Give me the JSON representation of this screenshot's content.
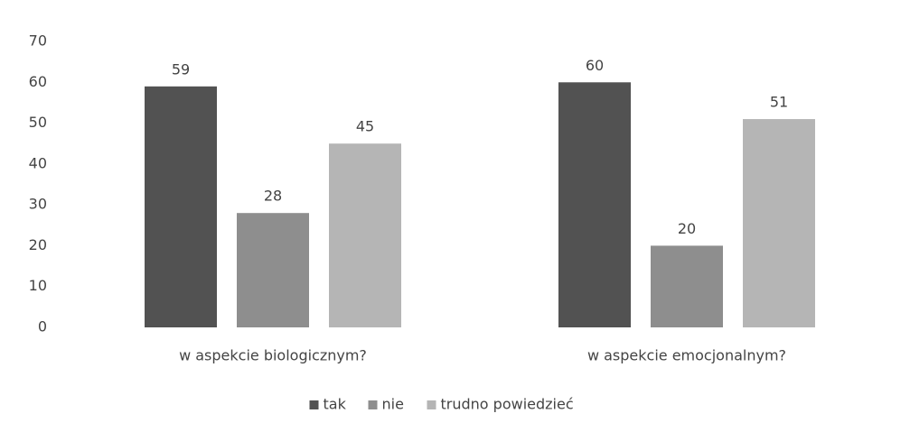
{
  "chart_data": {
    "type": "bar",
    "categories": [
      "w aspekcie biologicznym?",
      "w aspekcie emocjonalnym?"
    ],
    "series": [
      {
        "name": "tak",
        "color": "#525252",
        "values": [
          59,
          60
        ]
      },
      {
        "name": "nie",
        "color": "#8e8e8e",
        "values": [
          28,
          20
        ]
      },
      {
        "name": "trudno powiedzieć",
        "color": "#b5b5b5",
        "values": [
          45,
          51
        ]
      }
    ],
    "ylim": [
      0,
      70
    ],
    "yticks": [
      0,
      10,
      20,
      30,
      40,
      50,
      60,
      70
    ],
    "grid": false,
    "legend": "bottom"
  }
}
